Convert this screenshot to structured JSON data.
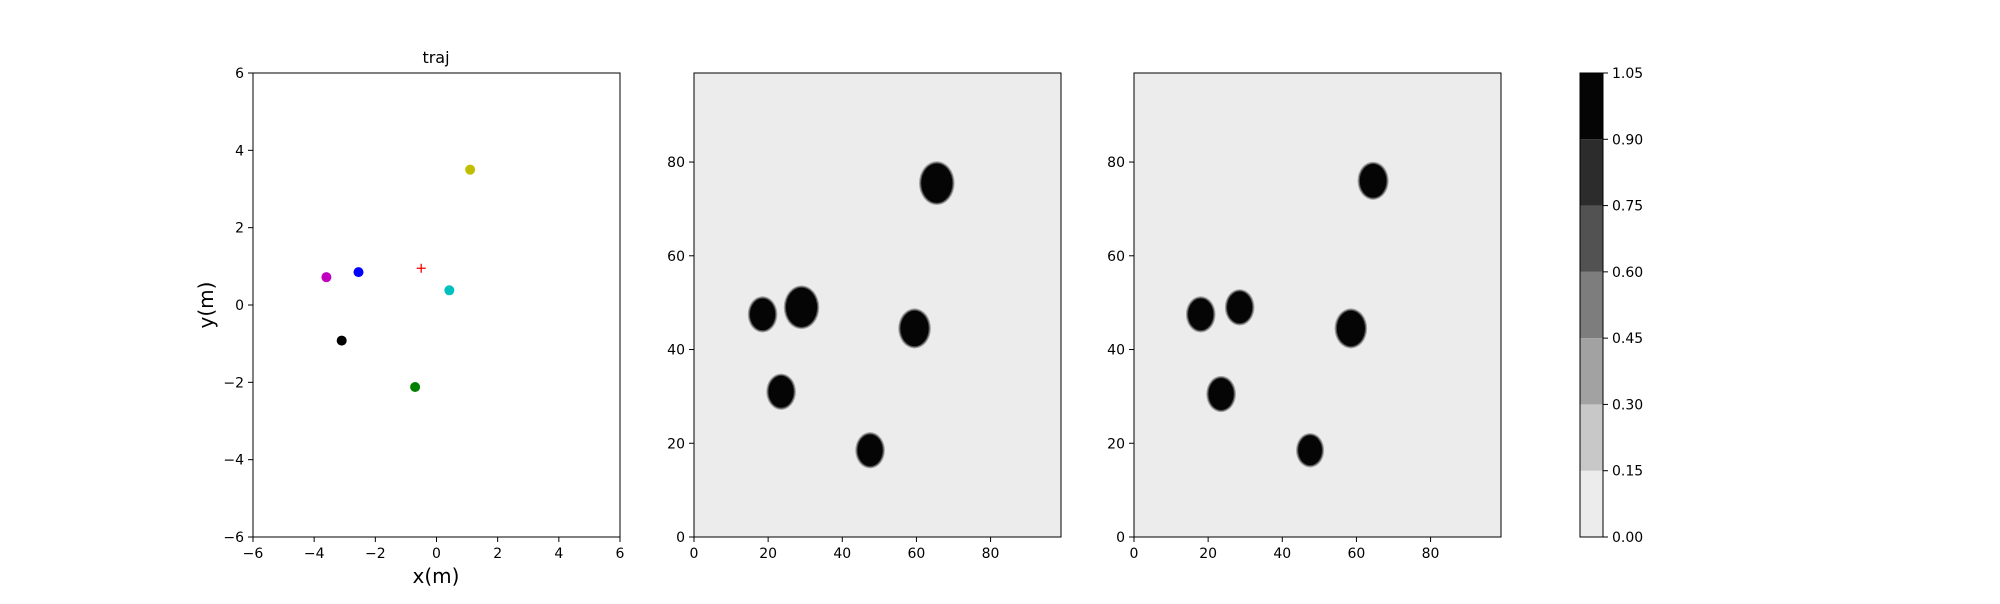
{
  "chart_data": [
    {
      "type": "scatter",
      "title": "traj",
      "xlabel": "x(m)",
      "ylabel": "y(m)",
      "xlim": [
        -6,
        6
      ],
      "ylim": [
        -6,
        6
      ],
      "xticks": [
        "−6",
        "−4",
        "−2",
        "0",
        "2",
        "4",
        "6"
      ],
      "yticks": [
        "−6",
        "−4",
        "−2",
        "0",
        "2",
        "4",
        "6"
      ],
      "grid": false,
      "points": [
        {
          "x": -3.6,
          "y": 0.72,
          "color": "#bf00bf",
          "marker": "circle"
        },
        {
          "x": -2.55,
          "y": 0.85,
          "color": "#0000ff",
          "marker": "circle"
        },
        {
          "x": -3.1,
          "y": -0.92,
          "color": "#000000",
          "marker": "circle"
        },
        {
          "x": -0.7,
          "y": -2.12,
          "color": "#008000",
          "marker": "circle"
        },
        {
          "x": 0.42,
          "y": 0.38,
          "color": "#00bfbf",
          "marker": "circle"
        },
        {
          "x": 1.1,
          "y": 3.5,
          "color": "#bfbf00",
          "marker": "circle"
        },
        {
          "x": -0.5,
          "y": 0.95,
          "color": "#ff0000",
          "marker": "plus"
        }
      ]
    },
    {
      "type": "heatmap",
      "title": "",
      "xlim": [
        0,
        99
      ],
      "ylim": [
        0,
        99
      ],
      "xticks": [
        "0",
        "20",
        "40",
        "60",
        "80"
      ],
      "yticks": [
        "0",
        "20",
        "40",
        "60",
        "80"
      ],
      "background_value": 0.0,
      "blobs": [
        {
          "x": 65.5,
          "y": 75.5,
          "r": 4.2,
          "value": 1.0
        },
        {
          "x": 18.5,
          "y": 47.5,
          "r": 3.4,
          "value": 1.0
        },
        {
          "x": 29.0,
          "y": 49.0,
          "r": 4.2,
          "value": 1.0
        },
        {
          "x": 59.5,
          "y": 44.5,
          "r": 3.8,
          "value": 1.0
        },
        {
          "x": 23.5,
          "y": 31.0,
          "r": 3.4,
          "value": 1.0
        },
        {
          "x": 47.5,
          "y": 18.5,
          "r": 3.4,
          "value": 1.0
        }
      ]
    },
    {
      "type": "heatmap",
      "title": "",
      "xlim": [
        0,
        99
      ],
      "ylim": [
        0,
        99
      ],
      "xticks": [
        "0",
        "20",
        "40",
        "60",
        "80"
      ],
      "yticks": [
        "0",
        "20",
        "40",
        "60",
        "80"
      ],
      "background_value": 0.0,
      "blobs": [
        {
          "x": 64.5,
          "y": 76.0,
          "r": 3.6,
          "value": 1.0
        },
        {
          "x": 18.0,
          "y": 47.5,
          "r": 3.4,
          "value": 1.0
        },
        {
          "x": 28.5,
          "y": 49.0,
          "r": 3.4,
          "value": 1.0
        },
        {
          "x": 58.5,
          "y": 44.5,
          "r": 3.8,
          "value": 1.0
        },
        {
          "x": 23.5,
          "y": 30.5,
          "r": 3.4,
          "value": 1.0
        },
        {
          "x": 47.5,
          "y": 18.5,
          "r": 3.2,
          "value": 1.0
        }
      ]
    }
  ],
  "colorbar": {
    "ticks": [
      "0.00",
      "0.15",
      "0.30",
      "0.45",
      "0.60",
      "0.75",
      "0.90",
      "1.05"
    ],
    "levels": [
      {
        "from": 0.0,
        "to": 0.15,
        "color": "#ececec"
      },
      {
        "from": 0.15,
        "to": 0.3,
        "color": "#c8c8c8"
      },
      {
        "from": 0.3,
        "to": 0.45,
        "color": "#a2a2a2"
      },
      {
        "from": 0.45,
        "to": 0.6,
        "color": "#7d7d7d"
      },
      {
        "from": 0.6,
        "to": 0.75,
        "color": "#525252"
      },
      {
        "from": 0.75,
        "to": 0.9,
        "color": "#2c2c2c"
      },
      {
        "from": 0.9,
        "to": 1.05,
        "color": "#050505"
      }
    ]
  }
}
